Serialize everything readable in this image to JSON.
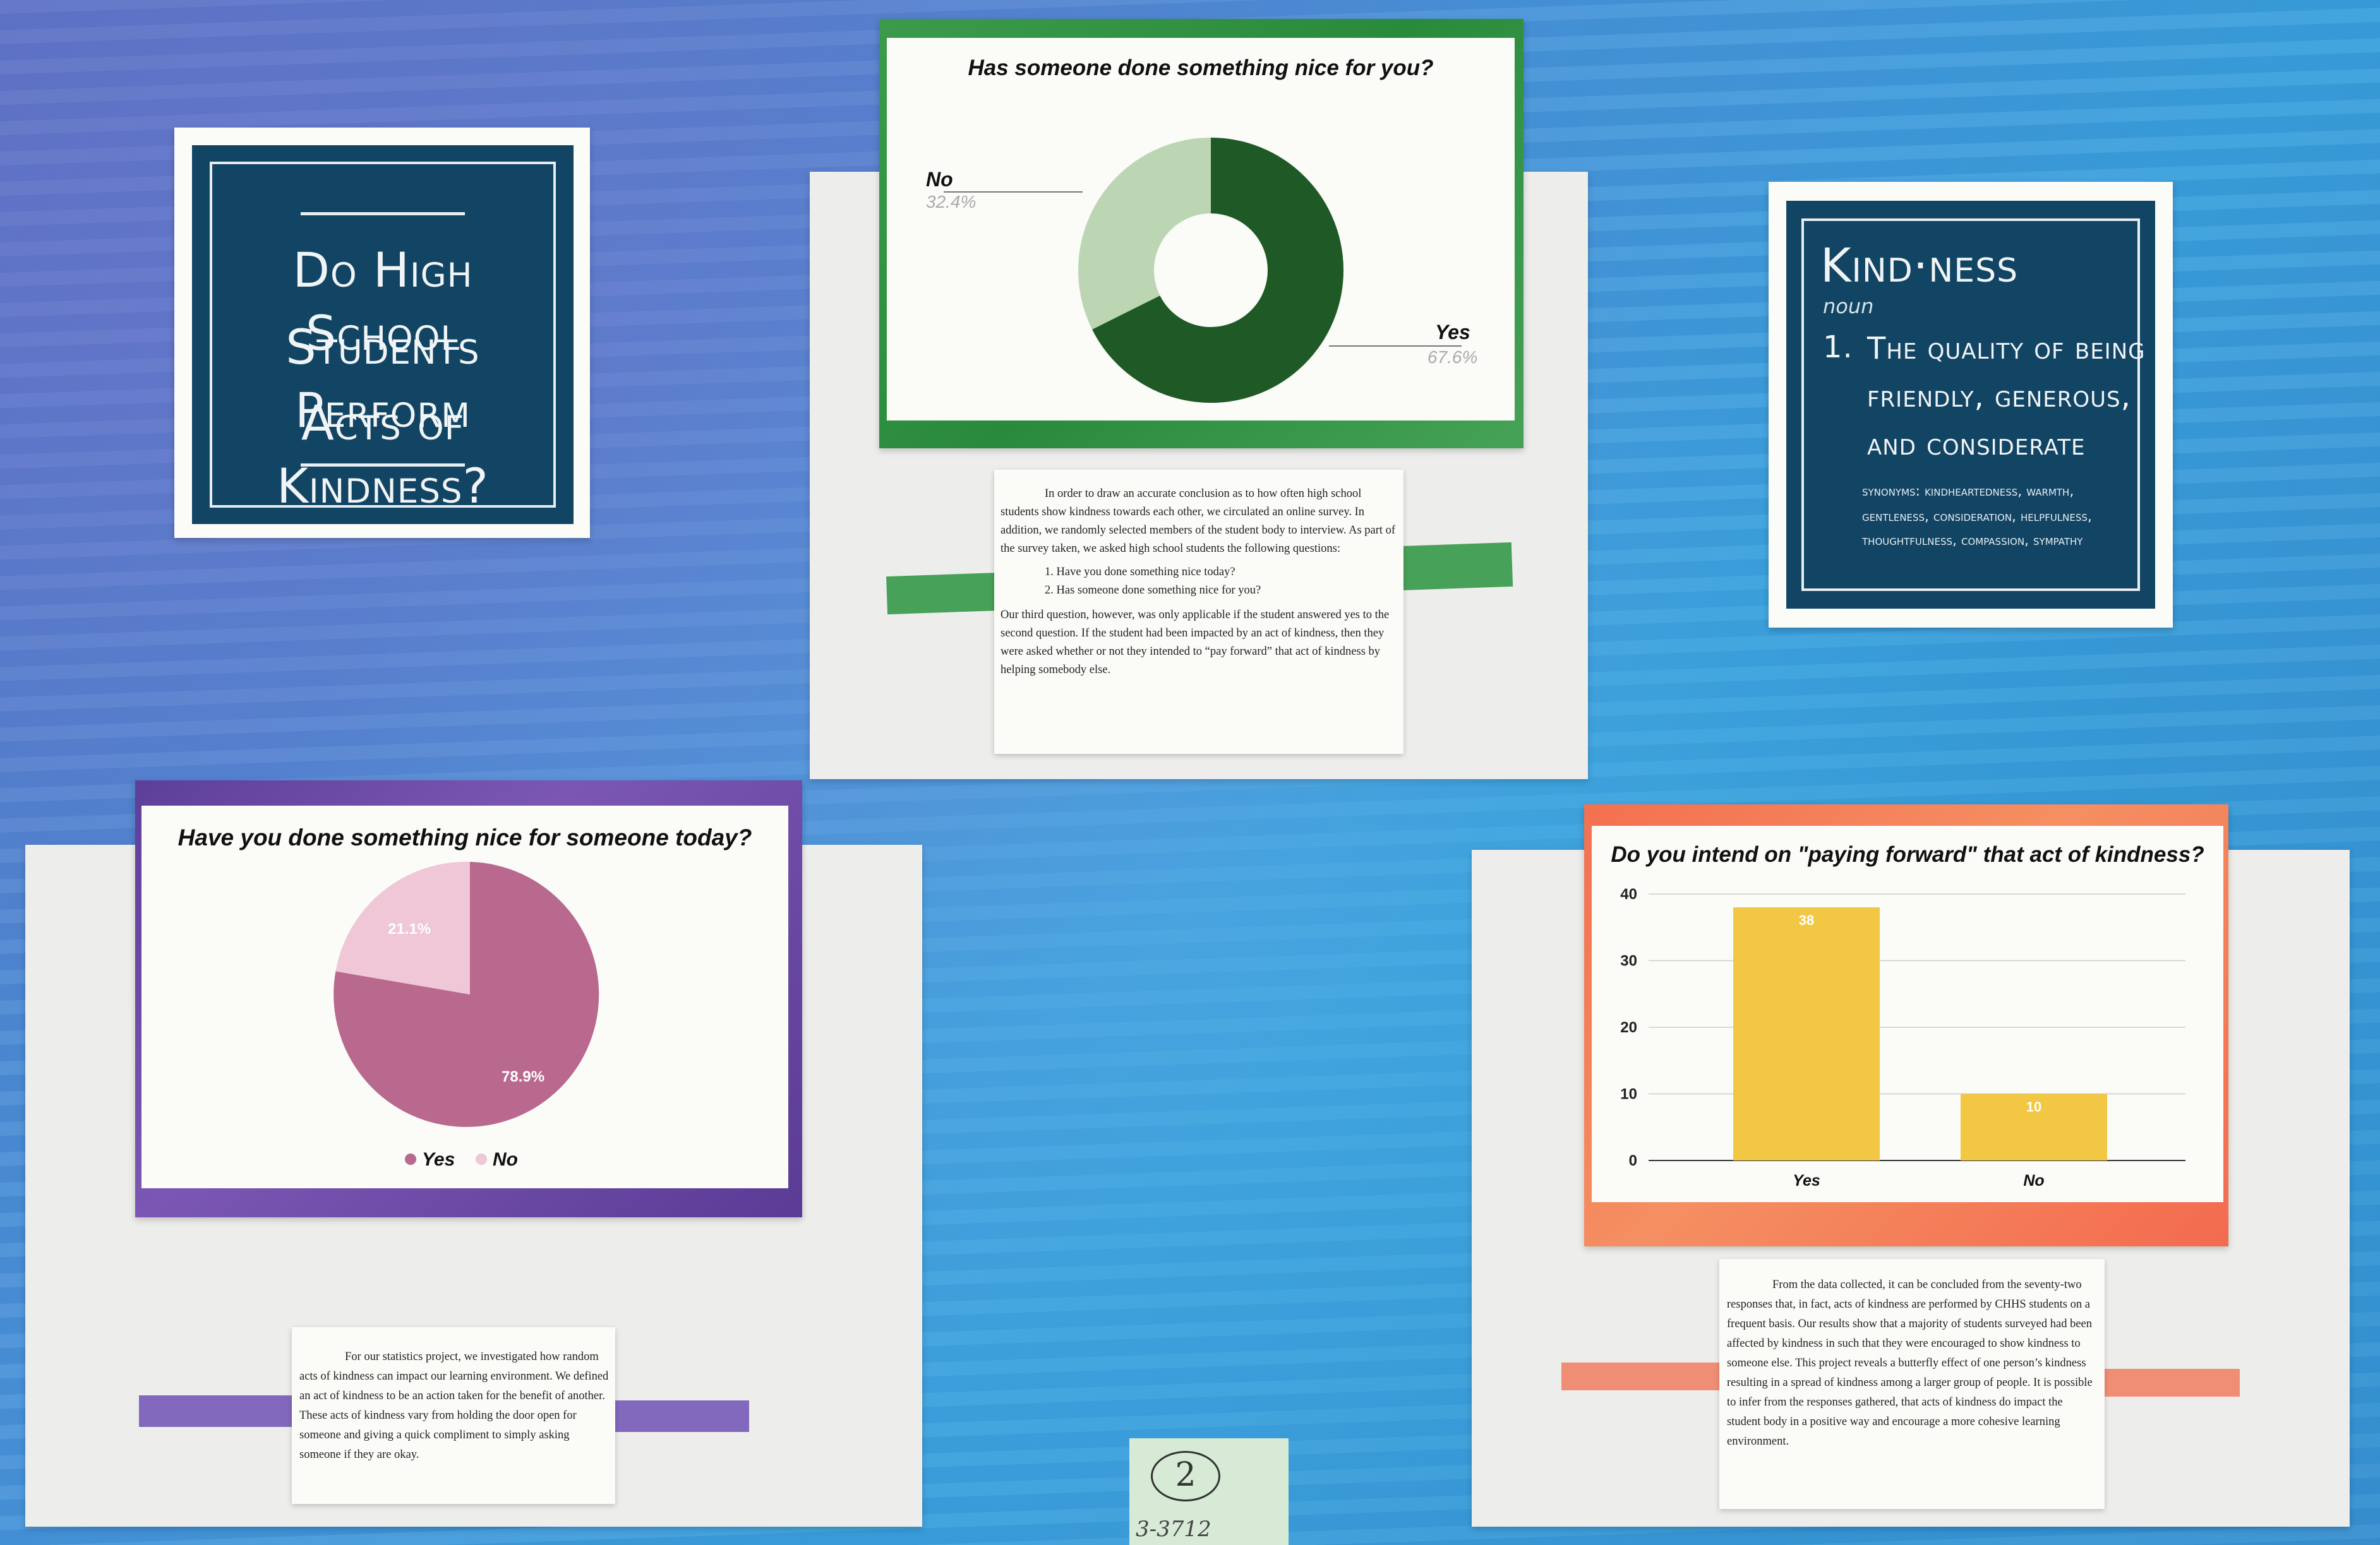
{
  "title_card": {
    "line1": "Do High School",
    "line2": "Students Perform",
    "line3": "Acts of Kindness?"
  },
  "definition_card": {
    "word": "Kind·ness",
    "pos": "noun",
    "def_number": "1.",
    "def_line1": "The quality of being",
    "def_line2": "friendly, generous,",
    "def_line3": "and considerate",
    "synonyms_line1": "synonyms: kindheartedness, warmth,",
    "synonyms_line2": "gentleness, consideration, helpfulness,",
    "synonyms_line3": "thoughtfulness, compassion, sympathy"
  },
  "donut_chart": {
    "title": "Has someone done something nice for you?",
    "no_label": "No",
    "no_pct": "32.4%",
    "yes_label": "Yes",
    "yes_pct": "67.6%"
  },
  "pie_chart": {
    "title": "Have you done something nice for someone today?",
    "yes_pct": "78.9%",
    "no_pct": "21.1%",
    "legend_yes": "Yes",
    "legend_no": "No"
  },
  "bar_chart": {
    "title": "Do you intend on \"paying forward\" that act of kindness?",
    "ticks": [
      "40",
      "30",
      "20",
      "10",
      "0"
    ],
    "cat_yes": "Yes",
    "cat_no": "No",
    "val_yes": "38",
    "val_no": "10"
  },
  "chart_data": [
    {
      "type": "pie",
      "title": "Has someone done something nice for you?",
      "categories": [
        "Yes",
        "No"
      ],
      "values": [
        67.6,
        32.4
      ],
      "colors": [
        "#1f5a26",
        "#bcd6b4"
      ]
    },
    {
      "type": "pie",
      "title": "Have you done something nice for someone today?",
      "categories": [
        "Yes",
        "No"
      ],
      "values": [
        78.9,
        21.1
      ],
      "colors": [
        "#b9688e",
        "#efc7d6"
      ]
    },
    {
      "type": "bar",
      "title": "Do you intend on \"paying forward\" that act of kindness?",
      "categories": [
        "Yes",
        "No"
      ],
      "values": [
        38,
        10
      ],
      "ylim": [
        0,
        40
      ],
      "color": "#f2c744"
    }
  ],
  "method_note": {
    "p1": "In order to draw an accurate conclusion as to how often high school students show kindness towards each other, we circulated an online survey. In addition, we randomly selected members of the student body to interview. As part of the survey taken, we asked high school students the following questions:",
    "q1": "1. Have you done something nice today?",
    "q2": "2. Has someone done something nice for you?",
    "p2": "Our third question, however, was only applicable if the student answered yes to the second question. If the student had been impacted by an act of kindness, then they were asked whether or not they intended to “pay forward” that act of kindness by helping somebody else."
  },
  "intro_note": {
    "text": "For our statistics project, we investigated how random acts of kindness can impact our learning environment. We defined an act of kindness to be an action taken for the benefit of another. These acts of kindness vary from holding the door open for someone and giving a quick compliment to simply asking someone if they are okay."
  },
  "conclusion_note": {
    "text": "From the data collected, it can be concluded from the seventy-two responses that, in fact, acts of kindness are performed by CHHS students on a frequent basis. Our results show that a majority of students surveyed had been affected by kindness in such that they were encouraged to show kindness to someone else. This project reveals a butterfly effect of one person’s kindness resulting in a spread of kindness among a larger group of people. It is possible to infer from the responses gathered, that acts of kindness do impact the student body in a positive way and encourage a more cohesive learning environment."
  },
  "sticky": {
    "number": "2",
    "code": "3-3712"
  },
  "colors": {
    "navy": "#124464",
    "green": "#1f5a26",
    "light_green": "#bcd6b4",
    "pink": "#b9688e",
    "light_pink": "#efc7d6",
    "bar_yellow": "#f2c744",
    "orange": "#f3825b",
    "purple": "#6f4fa6"
  }
}
